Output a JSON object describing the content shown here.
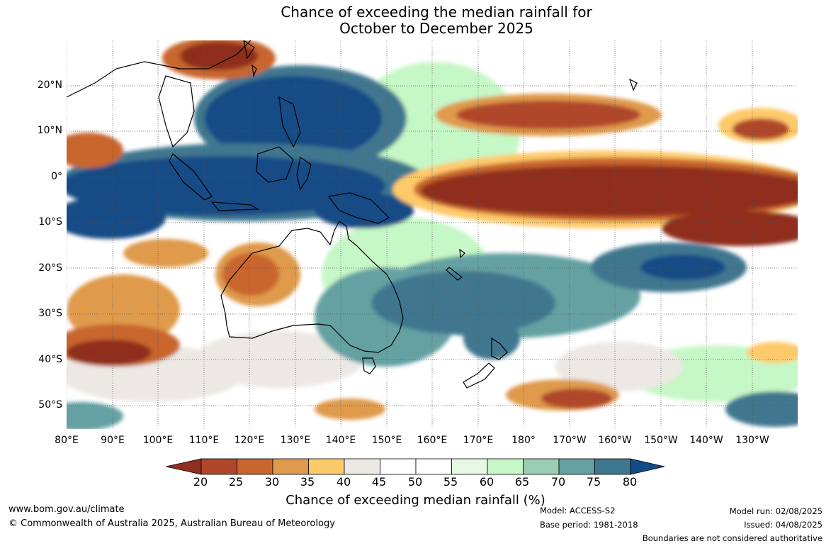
{
  "title": {
    "line1": "Chance of exceeding the median rainfall for",
    "line2": "October to December 2025"
  },
  "map": {
    "latitude_labels": [
      "20°N",
      "10°N",
      "0°",
      "10°S",
      "20°S",
      "30°S",
      "40°S",
      "50°S"
    ],
    "longitude_labels": [
      "80°E",
      "90°E",
      "100°E",
      "110°E",
      "120°E",
      "130°E",
      "140°E",
      "150°E",
      "160°E",
      "170°E",
      "180°",
      "170°W",
      "160°W",
      "150°W",
      "140°W",
      "130°W"
    ]
  },
  "colorbar": {
    "title": "Chance of exceeding median rainfall (%)",
    "tick_labels": [
      "20",
      "25",
      "30",
      "35",
      "40",
      "45",
      "50",
      "55",
      "60",
      "65",
      "70",
      "75",
      "80"
    ],
    "colors": [
      "#8f2f1d",
      "#b1472a",
      "#c8662e",
      "#df9a4c",
      "#fdca6a",
      "#ece8e4",
      "#ffffff",
      "#ffffff",
      "#e6f7e4",
      "#c6f7c6",
      "#99cdb4",
      "#65a1a3",
      "#3f778f",
      "#144b86"
    ]
  },
  "footer": {
    "website": "www.bom.gov.au/climate",
    "copyright": "© Commonwealth of Australia 2025, Australian Bureau of Meteorology",
    "model": "Model: ACCESS-S2",
    "base_period": "Base period: 1981-2018",
    "model_run": "Model run: 02/08/2025",
    "issued": "Issued: 04/08/2025",
    "disclaimer": "Boundaries are not considered authoritative"
  }
}
